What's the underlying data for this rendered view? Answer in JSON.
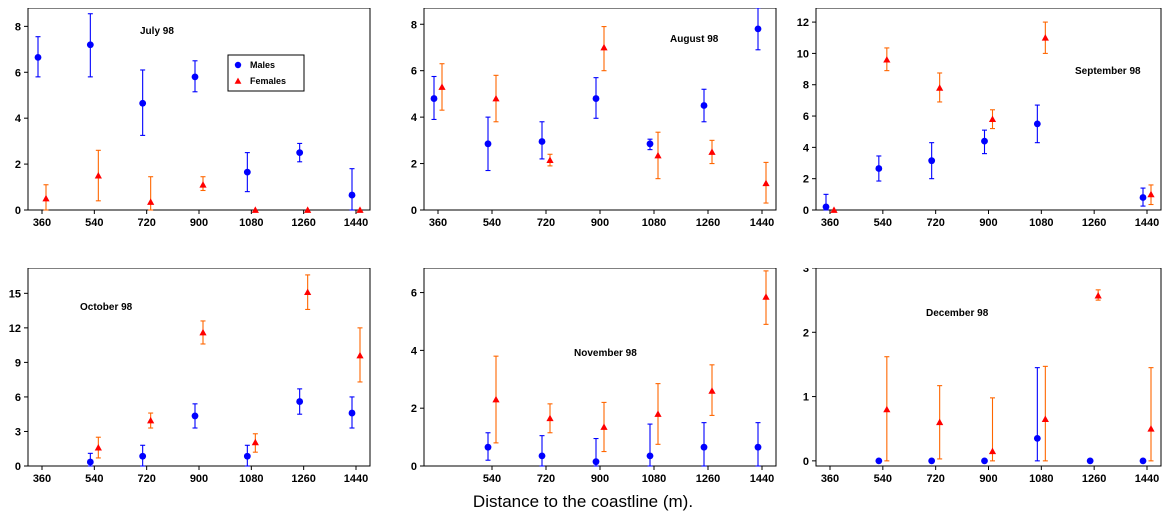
{
  "figure": {
    "xlabel": "Distance to the coastline (m).",
    "colors": {
      "males": "#0000ff",
      "females": "#ff0000",
      "females_error": "#ff6600"
    }
  },
  "chart_data": [
    {
      "type": "scatter",
      "title": "July 98",
      "x_ticks": [
        "360",
        "540",
        "720",
        "900",
        "1080",
        "1260",
        "1440"
      ],
      "ylim": [
        0,
        8.8
      ],
      "y_ticks": [
        0,
        2,
        4,
        6,
        8
      ],
      "legend": {
        "placement": "top-right",
        "entries": [
          "Males",
          "Females"
        ]
      },
      "series": [
        {
          "name": "Males",
          "marker": "circle",
          "color": "#0000ff",
          "points": [
            {
              "x": 360,
              "y": 6.65,
              "lo": 5.8,
              "hi": 7.55
            },
            {
              "x": 540,
              "y": 7.2,
              "lo": 5.8,
              "hi": 8.55
            },
            {
              "x": 720,
              "y": 4.65,
              "lo": 3.25,
              "hi": 6.1
            },
            {
              "x": 900,
              "y": 5.8,
              "lo": 5.15,
              "hi": 6.5
            },
            {
              "x": 1080,
              "y": 1.65,
              "lo": 0.8,
              "hi": 2.5
            },
            {
              "x": 1260,
              "y": 2.5,
              "lo": 2.1,
              "hi": 2.9
            },
            {
              "x": 1440,
              "y": 0.65,
              "lo": 0.0,
              "hi": 1.8
            }
          ]
        },
        {
          "name": "Females",
          "marker": "triangle",
          "color": "#ff0000",
          "points": [
            {
              "x": 360,
              "y": 0.5,
              "lo": 0.0,
              "hi": 1.1
            },
            {
              "x": 540,
              "y": 1.5,
              "lo": 0.4,
              "hi": 2.6
            },
            {
              "x": 720,
              "y": 0.35,
              "lo": 0.0,
              "hi": 1.45
            },
            {
              "x": 900,
              "y": 1.1,
              "lo": 0.85,
              "hi": 1.45
            },
            {
              "x": 1080,
              "y": 0.0,
              "lo": 0.0,
              "hi": 0.0
            },
            {
              "x": 1260,
              "y": 0.0,
              "lo": 0.0,
              "hi": 0.0
            },
            {
              "x": 1440,
              "y": 0.0,
              "lo": 0.0,
              "hi": 0.0
            }
          ]
        }
      ]
    },
    {
      "type": "scatter",
      "title": "August 98",
      "x_ticks": [
        "360",
        "540",
        "720",
        "900",
        "1080",
        "1260",
        "1440"
      ],
      "ylim": [
        0,
        8.7
      ],
      "y_ticks": [
        0,
        2,
        4,
        6,
        8
      ],
      "series": [
        {
          "name": "Males",
          "marker": "circle",
          "color": "#0000ff",
          "points": [
            {
              "x": 360,
              "y": 4.8,
              "lo": 3.9,
              "hi": 5.75
            },
            {
              "x": 540,
              "y": 2.85,
              "lo": 1.7,
              "hi": 4.0
            },
            {
              "x": 720,
              "y": 2.95,
              "lo": 2.2,
              "hi": 3.8
            },
            {
              "x": 900,
              "y": 4.8,
              "lo": 3.95,
              "hi": 5.7
            },
            {
              "x": 1080,
              "y": 2.85,
              "lo": 2.6,
              "hi": 3.05
            },
            {
              "x": 1260,
              "y": 4.5,
              "lo": 3.8,
              "hi": 5.2
            },
            {
              "x": 1440,
              "y": 7.8,
              "lo": 6.9,
              "hi": 8.7
            }
          ]
        },
        {
          "name": "Females",
          "marker": "triangle",
          "color": "#ff0000",
          "points": [
            {
              "x": 360,
              "y": 5.3,
              "lo": 4.3,
              "hi": 6.3
            },
            {
              "x": 540,
              "y": 4.8,
              "lo": 3.8,
              "hi": 5.8
            },
            {
              "x": 720,
              "y": 2.15,
              "lo": 1.9,
              "hi": 2.4
            },
            {
              "x": 900,
              "y": 7.0,
              "lo": 6.0,
              "hi": 7.9
            },
            {
              "x": 1080,
              "y": 2.35,
              "lo": 1.35,
              "hi": 3.35
            },
            {
              "x": 1260,
              "y": 2.5,
              "lo": 2.0,
              "hi": 3.0
            },
            {
              "x": 1440,
              "y": 1.15,
              "lo": 0.3,
              "hi": 2.05
            }
          ]
        }
      ]
    },
    {
      "type": "scatter",
      "title": "September 98",
      "x_ticks": [
        "360",
        "540",
        "720",
        "900",
        "1080",
        "1260",
        "1440"
      ],
      "ylim": [
        0,
        12.9
      ],
      "y_ticks": [
        0,
        2,
        4,
        6,
        8,
        10,
        12
      ],
      "series": [
        {
          "name": "Males",
          "marker": "circle",
          "color": "#0000ff",
          "points": [
            {
              "x": 360,
              "y": 0.2,
              "lo": 0.0,
              "hi": 1.0
            },
            {
              "x": 540,
              "y": 2.65,
              "lo": 1.85,
              "hi": 3.45
            },
            {
              "x": 720,
              "y": 3.15,
              "lo": 2.0,
              "hi": 4.3
            },
            {
              "x": 900,
              "y": 4.4,
              "lo": 3.6,
              "hi": 5.1
            },
            {
              "x": 1080,
              "y": 5.5,
              "lo": 4.3,
              "hi": 6.7
            },
            {
              "x": 1440,
              "y": 0.8,
              "lo": 0.25,
              "hi": 1.4
            }
          ]
        },
        {
          "name": "Females",
          "marker": "triangle",
          "color": "#ff0000",
          "points": [
            {
              "x": 360,
              "y": 0.0,
              "lo": 0.0,
              "hi": 0.0
            },
            {
              "x": 540,
              "y": 9.6,
              "lo": 8.9,
              "hi": 10.35
            },
            {
              "x": 720,
              "y": 7.8,
              "lo": 6.9,
              "hi": 8.75
            },
            {
              "x": 900,
              "y": 5.8,
              "lo": 5.2,
              "hi": 6.4
            },
            {
              "x": 1080,
              "y": 11.0,
              "lo": 10.0,
              "hi": 12.0
            },
            {
              "x": 1440,
              "y": 1.0,
              "lo": 0.35,
              "hi": 1.6
            }
          ]
        }
      ]
    },
    {
      "type": "scatter",
      "title": "October 98",
      "x_ticks": [
        "360",
        "540",
        "720",
        "900",
        "1080",
        "1260",
        "1440"
      ],
      "ylim": [
        0,
        17.2
      ],
      "y_ticks": [
        0,
        3,
        6,
        9,
        12,
        15
      ],
      "series": [
        {
          "name": "Males",
          "marker": "circle",
          "color": "#0000ff",
          "points": [
            {
              "x": 540,
              "y": 0.35,
              "lo": 0.0,
              "hi": 1.1
            },
            {
              "x": 720,
              "y": 0.85,
              "lo": 0.0,
              "hi": 1.8
            },
            {
              "x": 900,
              "y": 4.35,
              "lo": 3.3,
              "hi": 5.4
            },
            {
              "x": 1080,
              "y": 0.85,
              "lo": 0.0,
              "hi": 1.8
            },
            {
              "x": 1260,
              "y": 5.6,
              "lo": 4.5,
              "hi": 6.7
            },
            {
              "x": 1440,
              "y": 4.6,
              "lo": 3.3,
              "hi": 6.0
            }
          ]
        },
        {
          "name": "Females",
          "marker": "triangle",
          "color": "#ff0000",
          "points": [
            {
              "x": 540,
              "y": 1.6,
              "lo": 0.7,
              "hi": 2.5
            },
            {
              "x": 720,
              "y": 3.95,
              "lo": 3.3,
              "hi": 4.6
            },
            {
              "x": 900,
              "y": 11.6,
              "lo": 10.6,
              "hi": 12.6
            },
            {
              "x": 1080,
              "y": 2.05,
              "lo": 1.2,
              "hi": 2.8
            },
            {
              "x": 1260,
              "y": 15.1,
              "lo": 13.6,
              "hi": 16.6
            },
            {
              "x": 1440,
              "y": 9.6,
              "lo": 7.3,
              "hi": 12.0
            }
          ]
        }
      ]
    },
    {
      "type": "scatter",
      "title": "November 98",
      "x_ticks": [
        "540",
        "720",
        "900",
        "1080",
        "1260",
        "1440"
      ],
      "ylim": [
        0,
        6.85
      ],
      "y_ticks": [
        0,
        2,
        4,
        6
      ],
      "series": [
        {
          "name": "Males",
          "marker": "circle",
          "color": "#0000ff",
          "points": [
            {
              "x": 540,
              "y": 0.65,
              "lo": 0.2,
              "hi": 1.15
            },
            {
              "x": 720,
              "y": 0.35,
              "lo": 0.0,
              "hi": 1.05
            },
            {
              "x": 900,
              "y": 0.15,
              "lo": 0.0,
              "hi": 0.95
            },
            {
              "x": 1080,
              "y": 0.35,
              "lo": 0.0,
              "hi": 1.45
            },
            {
              "x": 1260,
              "y": 0.65,
              "lo": 0.0,
              "hi": 1.5
            },
            {
              "x": 1440,
              "y": 0.65,
              "lo": 0.0,
              "hi": 1.5
            }
          ]
        },
        {
          "name": "Females",
          "marker": "triangle",
          "color": "#ff0000",
          "points": [
            {
              "x": 540,
              "y": 2.3,
              "lo": 0.8,
              "hi": 3.8
            },
            {
              "x": 720,
              "y": 1.65,
              "lo": 1.15,
              "hi": 2.15
            },
            {
              "x": 900,
              "y": 1.35,
              "lo": 0.5,
              "hi": 2.2
            },
            {
              "x": 1080,
              "y": 1.8,
              "lo": 0.75,
              "hi": 2.85
            },
            {
              "x": 1260,
              "y": 2.6,
              "lo": 1.75,
              "hi": 3.5
            },
            {
              "x": 1440,
              "y": 5.85,
              "lo": 4.9,
              "hi": 6.75
            }
          ]
        }
      ]
    },
    {
      "type": "scatter",
      "title": "December 98",
      "x_ticks": [
        "360",
        "540",
        "720",
        "900",
        "1080",
        "1260",
        "1440"
      ],
      "ylim": [
        -0.08,
        3.0
      ],
      "y_ticks": [
        0,
        1,
        2,
        3
      ],
      "series": [
        {
          "name": "Males",
          "marker": "circle",
          "color": "#0000ff",
          "points": [
            {
              "x": 540,
              "y": 0.0,
              "lo": 0.0,
              "hi": 0.0
            },
            {
              "x": 720,
              "y": 0.0,
              "lo": 0.0,
              "hi": 0.0
            },
            {
              "x": 900,
              "y": 0.0,
              "lo": 0.0,
              "hi": 0.0
            },
            {
              "x": 1080,
              "y": 0.35,
              "lo": 0.0,
              "hi": 1.45
            },
            {
              "x": 1260,
              "y": 0.0,
              "lo": 0.0,
              "hi": 0.0
            },
            {
              "x": 1440,
              "y": 0.0,
              "lo": 0.0,
              "hi": 0.0
            }
          ]
        },
        {
          "name": "Females",
          "marker": "triangle",
          "color": "#ff0000",
          "points": [
            {
              "x": 540,
              "y": 0.8,
              "lo": 0.0,
              "hi": 1.62
            },
            {
              "x": 720,
              "y": 0.6,
              "lo": 0.03,
              "hi": 1.17
            },
            {
              "x": 900,
              "y": 0.15,
              "lo": 0.0,
              "hi": 0.98
            },
            {
              "x": 1080,
              "y": 0.65,
              "lo": 0.0,
              "hi": 1.47
            },
            {
              "x": 1260,
              "y": 2.57,
              "lo": 2.5,
              "hi": 2.66
            },
            {
              "x": 1440,
              "y": 0.5,
              "lo": 0.0,
              "hi": 1.45
            }
          ]
        }
      ]
    }
  ]
}
